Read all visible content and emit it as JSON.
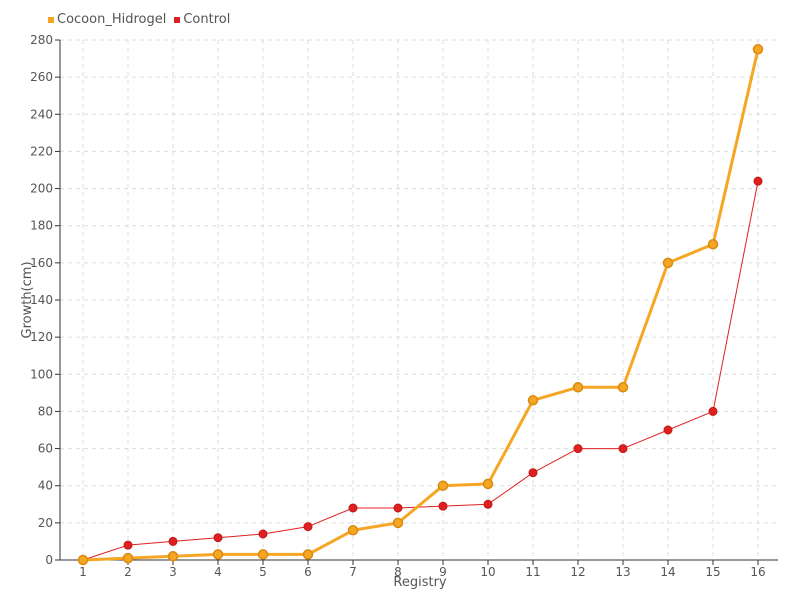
{
  "chart_data": {
    "type": "line",
    "xlabel": "Registry",
    "ylabel": "Growth(cm)",
    "ylim": [
      0,
      280
    ],
    "yticks": [
      0,
      20,
      40,
      60,
      80,
      100,
      120,
      140,
      160,
      180,
      200,
      220,
      240,
      260,
      280
    ],
    "categories": [
      "1",
      "2",
      "3",
      "4",
      "5",
      "6",
      "7",
      "8",
      "9",
      "10",
      "11",
      "12",
      "13",
      "14",
      "15",
      "16"
    ],
    "grid": true,
    "legend_position": "top-left",
    "series": [
      {
        "name": "Cocoon_Hidrogel",
        "color": "#f5a623",
        "values": [
          0,
          1,
          2,
          3,
          3,
          3,
          16,
          20,
          40,
          41,
          86,
          93,
          93,
          160,
          170,
          275
        ]
      },
      {
        "name": "Control",
        "color": "#e02020",
        "values": [
          0,
          8,
          10,
          12,
          14,
          18,
          28,
          28,
          29,
          30,
          47,
          60,
          60,
          70,
          80,
          204
        ]
      }
    ]
  }
}
